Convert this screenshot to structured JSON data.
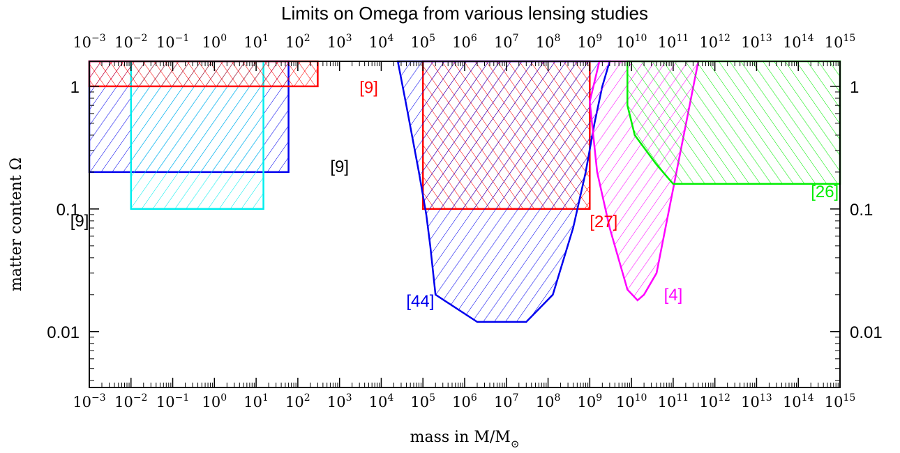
{
  "chart_data": {
    "type": "area",
    "title": "Limits on Omega from various lensing studies",
    "xlabel": "mass in M/M",
    "xlabel_sub": "⊙",
    "ylabel": "matter content Ω",
    "x_scale": "log",
    "y_scale": "log",
    "xlim": [
      0.001,
      1000000000000000.0
    ],
    "ylim": [
      0.0035,
      1.6
    ],
    "x_tick_exponents": [
      -3,
      -2,
      -1,
      0,
      1,
      2,
      3,
      4,
      5,
      6,
      7,
      8,
      9,
      10,
      11,
      12,
      13,
      14,
      15
    ],
    "y_ticks": [
      {
        "value": 1,
        "label": "1"
      },
      {
        "value": 0.1,
        "label": "0.1"
      },
      {
        "value": 0.01,
        "label": "0.01"
      }
    ],
    "grid": false,
    "colors": {
      "blue": "#0000ee",
      "cyan": "#00eeee",
      "red": "#ff0000",
      "magenta": "#ff00ff",
      "green": "#00ee00"
    },
    "regions": [
      {
        "ref": "[9]",
        "color": "#0000ee",
        "hatch": "forward",
        "polygon": [
          [
            0.001,
            0.2
          ],
          [
            60,
            0.2
          ],
          [
            60,
            1.6
          ],
          [
            0.001,
            1.6
          ]
        ],
        "label_at": [
          600,
          0.2
        ]
      },
      {
        "ref": "[9]",
        "color": "#00eeee",
        "hatch": "forward",
        "polygon": [
          [
            0.01,
            0.1
          ],
          [
            15,
            0.1
          ],
          [
            15,
            1.6
          ],
          [
            0.01,
            1.6
          ]
        ],
        "label_at": [
          0.00035,
          0.072
        ]
      },
      {
        "ref": "[9]",
        "color": "#ff0000",
        "hatch": "cross",
        "polygon": [
          [
            0.001,
            1.0
          ],
          [
            300,
            1.0
          ],
          [
            300,
            1.6
          ],
          [
            0.001,
            1.6
          ]
        ],
        "label_at": [
          3000,
          0.88
        ]
      },
      {
        "ref": "[27]",
        "color": "#ff0000",
        "hatch": "cross",
        "polygon": [
          [
            100000,
            0.1
          ],
          [
            1000000000,
            0.1
          ],
          [
            1000000000,
            1.6
          ],
          [
            100000,
            1.6
          ]
        ],
        "label_at": [
          1000000000,
          0.071
        ]
      },
      {
        "ref": "[44]",
        "color": "#0000ee",
        "hatch": "forward",
        "polygon": [
          [
            25000,
            1.6
          ],
          [
            40000,
            0.7
          ],
          [
            80000,
            0.2
          ],
          [
            120000,
            0.09
          ],
          [
            150000,
            0.05
          ],
          [
            200000,
            0.02
          ],
          [
            2000000,
            0.012
          ],
          [
            30000000,
            0.012
          ],
          [
            130000000,
            0.02
          ],
          [
            400000000,
            0.07
          ],
          [
            800000000,
            0.2
          ],
          [
            1300000000,
            0.5
          ],
          [
            2000000000,
            1.0
          ],
          [
            3000000000,
            1.6
          ]
        ],
        "label_at": [
          40000,
          0.016
        ]
      },
      {
        "ref": "[4]",
        "color": "#ff00ff",
        "hatch": "forward",
        "polygon": [
          [
            1700000000,
            1.6
          ],
          [
            1000000000,
            0.75
          ],
          [
            1500000000,
            0.2
          ],
          [
            3000000000,
            0.07
          ],
          [
            8000000000,
            0.022
          ],
          [
            14000000000,
            0.018
          ],
          [
            20000000000,
            0.02
          ],
          [
            40000000000,
            0.03
          ],
          [
            120000000000,
            0.2
          ],
          [
            400000000000,
            1.6
          ]
        ],
        "label_at": [
          60000000000,
          0.018
        ]
      },
      {
        "ref": "[26]",
        "color": "#00ee00",
        "hatch": "backward",
        "polygon": [
          [
            8000000000,
            1.6
          ],
          [
            8000000000,
            0.7
          ],
          [
            12000000000,
            0.4
          ],
          [
            40000000000,
            0.23
          ],
          [
            100000000000,
            0.16
          ],
          [
            1000000000000000.0,
            0.16
          ],
          [
            1000000000000000.0,
            1.6
          ]
        ],
        "label_at": [
          200000000000000,
          0.125
        ]
      }
    ]
  }
}
